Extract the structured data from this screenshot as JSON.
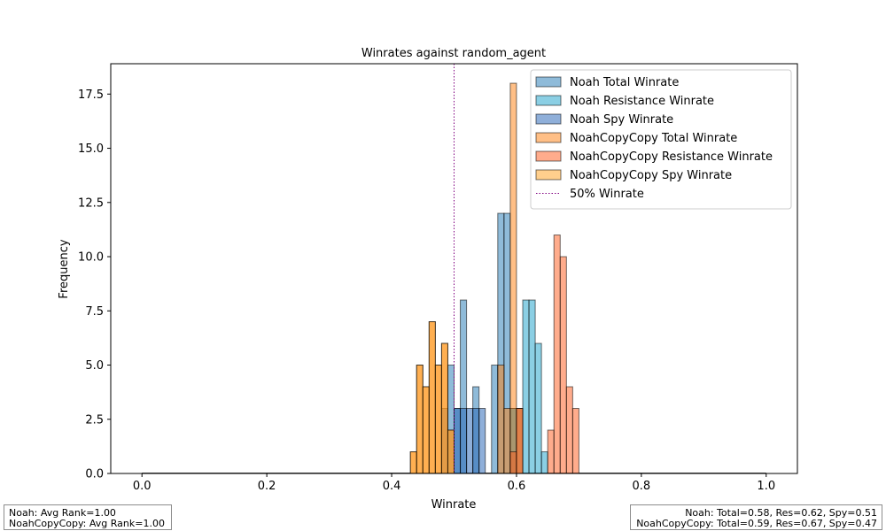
{
  "chart_data": {
    "type": "histogram",
    "title": "Winrates against random_agent",
    "xlabel": "Winrate",
    "ylabel": "Frequency",
    "xlim": [
      -0.05,
      1.05
    ],
    "ylim": [
      0,
      18.9
    ],
    "xticks": [
      0.0,
      0.2,
      0.4,
      0.6,
      0.8,
      1.0
    ],
    "xtick_labels": [
      "0.0",
      "0.2",
      "0.4",
      "0.6",
      "0.8",
      "1.0"
    ],
    "yticks": [
      0.0,
      2.5,
      5.0,
      7.5,
      10.0,
      12.5,
      15.0,
      17.5
    ],
    "ytick_labels": [
      "0.0",
      "2.5",
      "5.0",
      "7.5",
      "10.0",
      "12.5",
      "15.0",
      "17.5"
    ],
    "bin_width": 0.01,
    "legend_position": "top-right",
    "series": [
      {
        "name": "Noah Total Winrate",
        "color": "#1f77b4",
        "bins": [
          [
            0.49,
            5
          ],
          [
            0.5,
            3
          ],
          [
            0.51,
            8
          ],
          [
            0.53,
            4
          ],
          [
            0.56,
            5
          ],
          [
            0.57,
            12
          ],
          [
            0.58,
            12
          ],
          [
            0.59,
            3
          ]
        ]
      },
      {
        "name": "Noah Resistance Winrate",
        "color": "#17a0c9",
        "bins": [
          [
            0.59,
            3
          ],
          [
            0.6,
            3
          ],
          [
            0.61,
            8
          ],
          [
            0.62,
            8
          ],
          [
            0.63,
            6
          ],
          [
            0.64,
            1
          ]
        ]
      },
      {
        "name": "Noah Spy Winrate",
        "color": "#1f5fb4",
        "bins": [
          [
            0.48,
            3
          ],
          [
            0.5,
            3
          ],
          [
            0.51,
            3
          ],
          [
            0.52,
            3
          ],
          [
            0.53,
            3
          ],
          [
            0.54,
            3
          ]
        ]
      },
      {
        "name": "NoahCopyCopy Total Winrate",
        "color": "#ff7f0e",
        "bins": [
          [
            0.43,
            1
          ],
          [
            0.44,
            5
          ],
          [
            0.45,
            4
          ],
          [
            0.46,
            7
          ],
          [
            0.47,
            5
          ],
          [
            0.48,
            6
          ],
          [
            0.49,
            2
          ],
          [
            0.57,
            5
          ],
          [
            0.58,
            3
          ],
          [
            0.59,
            18
          ],
          [
            0.6,
            3
          ]
        ]
      },
      {
        "name": "NoahCopyCopy Resistance Winrate",
        "color": "#ff5a1a",
        "bins": [
          [
            0.59,
            1
          ],
          [
            0.6,
            3
          ],
          [
            0.65,
            2
          ],
          [
            0.66,
            11
          ],
          [
            0.67,
            10
          ],
          [
            0.68,
            4
          ],
          [
            0.69,
            3
          ]
        ]
      },
      {
        "name": "NoahCopyCopy Spy Winrate",
        "color": "#ff9f1c",
        "bins": [
          [
            0.43,
            1
          ],
          [
            0.44,
            5
          ],
          [
            0.45,
            4
          ],
          [
            0.46,
            7
          ],
          [
            0.47,
            5
          ],
          [
            0.48,
            6
          ],
          [
            0.49,
            2
          ]
        ]
      }
    ],
    "reference_lines": [
      {
        "name": "50% Winrate",
        "x": 0.5,
        "color": "#800080",
        "style": "dotted"
      }
    ]
  },
  "stats": {
    "left_lines": [
      "Noah: Avg Rank=1.00",
      "NoahCopyCopy: Avg Rank=1.00"
    ],
    "right_lines": [
      "Noah: Total=0.58, Res=0.62, Spy=0.51",
      "NoahCopyCopy: Total=0.59, Res=0.67, Spy=0.47"
    ]
  }
}
